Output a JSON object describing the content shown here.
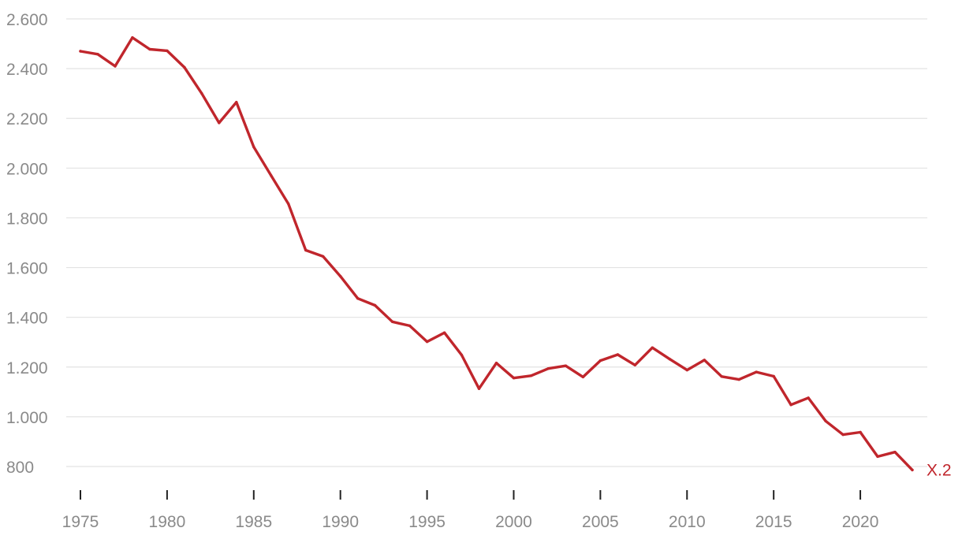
{
  "chart_data": {
    "type": "line",
    "title": "",
    "xlabel": "",
    "ylabel": "",
    "grid": "horizontal",
    "legend": "none",
    "xlim": [
      1975,
      2023
    ],
    "ylim": [
      800,
      2600
    ],
    "x_ticks": [
      1975,
      1980,
      1985,
      1990,
      1995,
      2000,
      2005,
      2010,
      2015,
      2020
    ],
    "x_tick_labels": [
      "1975",
      "1980",
      "1985",
      "1990",
      "1995",
      "2000",
      "2005",
      "2010",
      "2015",
      "2020"
    ],
    "y_ticks": [
      800,
      1000,
      1200,
      1400,
      1600,
      1800,
      2000,
      2200,
      2400,
      2600
    ],
    "y_tick_labels": [
      "800",
      "1.000",
      "1.200",
      "1.400",
      "1.600",
      "1.800",
      "2.000",
      "2.200",
      "2.400",
      "2.600"
    ],
    "series": [
      {
        "name": "X.2",
        "color": "#c0262c",
        "x": [
          1975,
          1976,
          1977,
          1978,
          1979,
          1980,
          1981,
          1982,
          1983,
          1984,
          1985,
          1986,
          1987,
          1988,
          1989,
          1990,
          1991,
          1992,
          1993,
          1994,
          1995,
          1996,
          1997,
          1998,
          1999,
          2000,
          2001,
          2002,
          2003,
          2004,
          2005,
          2006,
          2007,
          2008,
          2009,
          2010,
          2011,
          2012,
          2013,
          2014,
          2015,
          2016,
          2017,
          2018,
          2019,
          2020,
          2021,
          2022,
          2023
        ],
        "values": [
          2470,
          2458,
          2410,
          2525,
          2478,
          2472,
          2405,
          2300,
          2182,
          2265,
          2085,
          1970,
          1856,
          1670,
          1645,
          1565,
          1476,
          1448,
          1382,
          1366,
          1302,
          1338,
          1248,
          1113,
          1216,
          1156,
          1165,
          1194,
          1205,
          1160,
          1226,
          1250,
          1208,
          1278,
          1232,
          1188,
          1228,
          1162,
          1150,
          1180,
          1163,
          1048,
          1076,
          983,
          928,
          938,
          840,
          858,
          786
        ]
      }
    ]
  }
}
